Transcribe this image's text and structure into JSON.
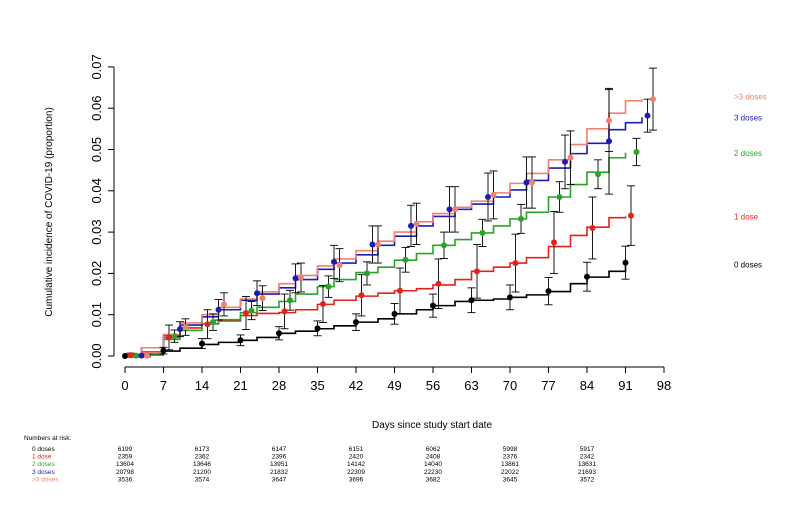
{
  "chart_data": {
    "type": "line",
    "subtype": "kaplan-meier-cumulative-incidence",
    "xlabel": "Days since study start date",
    "ylabel": "Cumulative incidence of COVID-19 (proportion)",
    "xlim": [
      0,
      98
    ],
    "ylim": [
      0,
      0.07
    ],
    "x_ticks": [
      0,
      7,
      14,
      21,
      28,
      35,
      42,
      49,
      56,
      63,
      70,
      77,
      84,
      91,
      98
    ],
    "y_ticks": [
      0.0,
      0.01,
      0.02,
      0.03,
      0.04,
      0.05,
      0.06,
      0.07
    ],
    "y_tick_labels": [
      "0.00",
      "0.01",
      "0.02",
      "0.03",
      "0.04",
      "0.05",
      "0.06",
      "0.07"
    ],
    "grid": false,
    "series": [
      {
        "name": "0 doses",
        "color": "#000000",
        "curve": [
          [
            0,
            0
          ],
          [
            3,
            0.0003
          ],
          [
            7,
            0.0012
          ],
          [
            10,
            0.0019
          ],
          [
            14,
            0.0028
          ],
          [
            17,
            0.0033
          ],
          [
            21,
            0.0038
          ],
          [
            24,
            0.0045
          ],
          [
            28,
            0.0055
          ],
          [
            31,
            0.006
          ],
          [
            35,
            0.0066
          ],
          [
            38,
            0.0073
          ],
          [
            42,
            0.0082
          ],
          [
            46,
            0.009
          ],
          [
            49,
            0.0102
          ],
          [
            53,
            0.0112
          ],
          [
            56,
            0.0122
          ],
          [
            60,
            0.0132
          ],
          [
            63,
            0.0135
          ],
          [
            67,
            0.0138
          ],
          [
            70,
            0.0142
          ],
          [
            73,
            0.0148
          ],
          [
            77,
            0.0156
          ],
          [
            81,
            0.0175
          ],
          [
            84,
            0.0191
          ],
          [
            88,
            0.0205
          ],
          [
            91,
            0.0222
          ]
        ],
        "points": [
          [
            0,
            0
          ],
          [
            7,
            0.0013
          ],
          [
            14,
            0.003
          ],
          [
            21,
            0.0038
          ],
          [
            28,
            0.0055
          ],
          [
            35,
            0.0067
          ],
          [
            42,
            0.0082
          ],
          [
            49,
            0.0102
          ],
          [
            56,
            0.0122
          ],
          [
            63,
            0.0135
          ],
          [
            70,
            0.0142
          ],
          [
            77,
            0.0157
          ],
          [
            84,
            0.0192
          ],
          [
            91,
            0.0226
          ]
        ],
        "err": [
          [
            0,
            0
          ],
          [
            7,
            0.0008
          ],
          [
            14,
            0.0012
          ],
          [
            21,
            0.0013
          ],
          [
            28,
            0.0016
          ],
          [
            35,
            0.0018
          ],
          [
            42,
            0.002
          ],
          [
            49,
            0.0025
          ],
          [
            56,
            0.0028
          ],
          [
            63,
            0.003
          ],
          [
            70,
            0.003
          ],
          [
            77,
            0.0033
          ],
          [
            84,
            0.0035
          ],
          [
            91,
            0.004
          ]
        ],
        "label_y": 0.0222
      },
      {
        "name": "1 dose",
        "color": "#e3231b",
        "curve": [
          [
            0,
            0
          ],
          [
            3,
            0.001
          ],
          [
            7,
            0.0045
          ],
          [
            10,
            0.0068
          ],
          [
            14,
            0.0078
          ],
          [
            17,
            0.0085
          ],
          [
            21,
            0.0098
          ],
          [
            24,
            0.0103
          ],
          [
            28,
            0.0105
          ],
          [
            31,
            0.0112
          ],
          [
            35,
            0.0125
          ],
          [
            38,
            0.0135
          ],
          [
            42,
            0.0145
          ],
          [
            46,
            0.0152
          ],
          [
            49,
            0.0158
          ],
          [
            53,
            0.0163
          ],
          [
            56,
            0.0172
          ],
          [
            60,
            0.0185
          ],
          [
            63,
            0.0205
          ],
          [
            67,
            0.0215
          ],
          [
            70,
            0.0225
          ],
          [
            73,
            0.0238
          ],
          [
            77,
            0.0265
          ],
          [
            81,
            0.0292
          ],
          [
            84,
            0.0312
          ],
          [
            88,
            0.0335
          ],
          [
            91,
            0.0338
          ]
        ],
        "points": [
          [
            1,
            0.0002
          ],
          [
            8,
            0.0045
          ],
          [
            15,
            0.0077
          ],
          [
            22,
            0.0104
          ],
          [
            29,
            0.0108
          ],
          [
            36,
            0.0126
          ],
          [
            43,
            0.0147
          ],
          [
            50,
            0.0158
          ],
          [
            57,
            0.0175
          ],
          [
            64,
            0.0205
          ],
          [
            71,
            0.0225
          ],
          [
            78,
            0.0275
          ],
          [
            85,
            0.031
          ],
          [
            92,
            0.034
          ]
        ],
        "err": [
          [
            1,
            0.0005
          ],
          [
            8,
            0.003
          ],
          [
            15,
            0.0035
          ],
          [
            22,
            0.004
          ],
          [
            29,
            0.0042
          ],
          [
            36,
            0.0045
          ],
          [
            43,
            0.005
          ],
          [
            50,
            0.0055
          ],
          [
            57,
            0.006
          ],
          [
            64,
            0.0065
          ],
          [
            71,
            0.007
          ],
          [
            78,
            0.0075
          ],
          [
            85,
            0.0075
          ],
          [
            92,
            0.0072
          ]
        ],
        "label_y": 0.0338
      },
      {
        "name": "2 doses",
        "color": "#29a329",
        "curve": [
          [
            0,
            0
          ],
          [
            3,
            0.0005
          ],
          [
            7,
            0.004
          ],
          [
            10,
            0.0062
          ],
          [
            14,
            0.0078
          ],
          [
            17,
            0.0088
          ],
          [
            21,
            0.0105
          ],
          [
            24,
            0.0118
          ],
          [
            28,
            0.0132
          ],
          [
            31,
            0.015
          ],
          [
            35,
            0.0168
          ],
          [
            38,
            0.0185
          ],
          [
            42,
            0.0202
          ],
          [
            46,
            0.0215
          ],
          [
            49,
            0.0232
          ],
          [
            53,
            0.0248
          ],
          [
            56,
            0.0268
          ],
          [
            60,
            0.0282
          ],
          [
            63,
            0.0298
          ],
          [
            67,
            0.0315
          ],
          [
            70,
            0.0332
          ],
          [
            73,
            0.0348
          ],
          [
            77,
            0.0385
          ],
          [
            81,
            0.0415
          ],
          [
            84,
            0.0445
          ],
          [
            88,
            0.048
          ],
          [
            91,
            0.0492
          ]
        ],
        "points": [
          [
            2,
            0.0001
          ],
          [
            9,
            0.0048
          ],
          [
            16,
            0.0082
          ],
          [
            23,
            0.011
          ],
          [
            30,
            0.0135
          ],
          [
            37,
            0.0168
          ],
          [
            44,
            0.02
          ],
          [
            51,
            0.0233
          ],
          [
            58,
            0.0268
          ],
          [
            65,
            0.0298
          ],
          [
            72,
            0.0332
          ],
          [
            79,
            0.0385
          ],
          [
            86,
            0.044
          ],
          [
            93,
            0.0494
          ]
        ],
        "err": [
          [
            2,
            0.0003
          ],
          [
            9,
            0.0015
          ],
          [
            16,
            0.002
          ],
          [
            23,
            0.0022
          ],
          [
            30,
            0.0024
          ],
          [
            37,
            0.0026
          ],
          [
            44,
            0.0028
          ],
          [
            51,
            0.003
          ],
          [
            58,
            0.0032
          ],
          [
            65,
            0.0033
          ],
          [
            72,
            0.0035
          ],
          [
            79,
            0.0037
          ],
          [
            86,
            0.0035
          ],
          [
            93,
            0.0033
          ]
        ],
        "label_y": 0.0492
      },
      {
        "name": "3 doses",
        "color": "#1c1cb8",
        "curve": [
          [
            0,
            0
          ],
          [
            3,
            0.002
          ],
          [
            7,
            0.005
          ],
          [
            10,
            0.0075
          ],
          [
            14,
            0.0095
          ],
          [
            17,
            0.0112
          ],
          [
            21,
            0.0135
          ],
          [
            24,
            0.015
          ],
          [
            28,
            0.0165
          ],
          [
            31,
            0.0185
          ],
          [
            35,
            0.021
          ],
          [
            38,
            0.0225
          ],
          [
            42,
            0.0245
          ],
          [
            46,
            0.0268
          ],
          [
            49,
            0.029
          ],
          [
            53,
            0.0315
          ],
          [
            56,
            0.0338
          ],
          [
            60,
            0.0355
          ],
          [
            63,
            0.0368
          ],
          [
            67,
            0.0385
          ],
          [
            70,
            0.0402
          ],
          [
            73,
            0.0425
          ],
          [
            77,
            0.0455
          ],
          [
            81,
            0.049
          ],
          [
            84,
            0.0515
          ],
          [
            88,
            0.0548
          ],
          [
            91,
            0.0565
          ],
          [
            94,
            0.0578
          ]
        ],
        "points": [
          [
            3,
            0.0001
          ],
          [
            10,
            0.0065
          ],
          [
            17,
            0.0112
          ],
          [
            24,
            0.0152
          ],
          [
            31,
            0.0188
          ],
          [
            38,
            0.0228
          ],
          [
            45,
            0.027
          ],
          [
            52,
            0.0315
          ],
          [
            59,
            0.0355
          ],
          [
            66,
            0.0385
          ],
          [
            73,
            0.042
          ],
          [
            80,
            0.047
          ],
          [
            88,
            0.052
          ],
          [
            95,
            0.0582
          ]
        ],
        "err": [
          [
            3,
            0.0003
          ],
          [
            10,
            0.0018
          ],
          [
            17,
            0.0025
          ],
          [
            24,
            0.003
          ],
          [
            31,
            0.0035
          ],
          [
            38,
            0.004
          ],
          [
            45,
            0.0045
          ],
          [
            52,
            0.005
          ],
          [
            59,
            0.0055
          ],
          [
            66,
            0.0058
          ],
          [
            73,
            0.0062
          ],
          [
            80,
            0.0065
          ],
          [
            88,
            0.0128
          ],
          [
            95,
            0.004
          ]
        ],
        "label_y": 0.0578
      },
      {
        "name": ">3 doses",
        "color": "#f08070",
        "curve": [
          [
            0,
            0
          ],
          [
            3,
            0.002
          ],
          [
            7,
            0.0052
          ],
          [
            10,
            0.008
          ],
          [
            14,
            0.01
          ],
          [
            17,
            0.0118
          ],
          [
            21,
            0.0138
          ],
          [
            24,
            0.0155
          ],
          [
            28,
            0.0175
          ],
          [
            31,
            0.0195
          ],
          [
            35,
            0.0218
          ],
          [
            38,
            0.0235
          ],
          [
            42,
            0.0255
          ],
          [
            46,
            0.0278
          ],
          [
            49,
            0.03
          ],
          [
            53,
            0.0325
          ],
          [
            56,
            0.0345
          ],
          [
            60,
            0.036
          ],
          [
            63,
            0.0375
          ],
          [
            67,
            0.0395
          ],
          [
            70,
            0.0418
          ],
          [
            73,
            0.0442
          ],
          [
            77,
            0.0475
          ],
          [
            81,
            0.0512
          ],
          [
            84,
            0.055
          ],
          [
            88,
            0.0588
          ],
          [
            91,
            0.0618
          ],
          [
            94,
            0.0622
          ]
        ],
        "points": [
          [
            4,
            0.0001
          ],
          [
            11,
            0.007
          ],
          [
            18,
            0.0125
          ],
          [
            25,
            0.014
          ],
          [
            32,
            0.019
          ],
          [
            39,
            0.022
          ],
          [
            46,
            0.027
          ],
          [
            53,
            0.032
          ],
          [
            60,
            0.0355
          ],
          [
            67,
            0.039
          ],
          [
            74,
            0.042
          ],
          [
            81,
            0.048
          ],
          [
            88,
            0.057
          ],
          [
            96,
            0.0622
          ]
        ],
        "err": [
          [
            4,
            0.0003
          ],
          [
            11,
            0.002
          ],
          [
            18,
            0.0028
          ],
          [
            25,
            0.003
          ],
          [
            32,
            0.0035
          ],
          [
            39,
            0.004
          ],
          [
            46,
            0.0045
          ],
          [
            53,
            0.005
          ],
          [
            60,
            0.0055
          ],
          [
            67,
            0.0058
          ],
          [
            74,
            0.0062
          ],
          [
            81,
            0.0065
          ],
          [
            88,
            0.0075
          ],
          [
            96,
            0.0075
          ]
        ],
        "label_y": 0.0628
      }
    ],
    "risk_table": {
      "title": "Numbers at risk:",
      "columns_x": [
        0,
        14,
        28,
        42,
        56,
        70,
        84
      ],
      "rows": [
        {
          "label": "0 doses",
          "color": "#000000",
          "values": [
            "6199",
            "6173",
            "6147",
            "6151",
            "6062",
            "5998",
            "5917"
          ]
        },
        {
          "label": "1 dose",
          "color": "#e3231b",
          "values": [
            "2359",
            "2362",
            "2396",
            "2420",
            "2408",
            "2376",
            "2342"
          ]
        },
        {
          "label": "2 doses",
          "color": "#29a329",
          "values": [
            "13604",
            "13646",
            "13951",
            "14142",
            "14040",
            "13861",
            "13631"
          ]
        },
        {
          "label": "3 doses",
          "color": "#1c1cb8",
          "values": [
            "20798",
            "21200",
            "21832",
            "22309",
            "22230",
            "22022",
            "21693"
          ]
        },
        {
          "label": ">3 doses",
          "color": "#f08070",
          "values": [
            "3536",
            "3574",
            "3647",
            "3696",
            "3682",
            "3645",
            "3572"
          ]
        }
      ]
    }
  }
}
